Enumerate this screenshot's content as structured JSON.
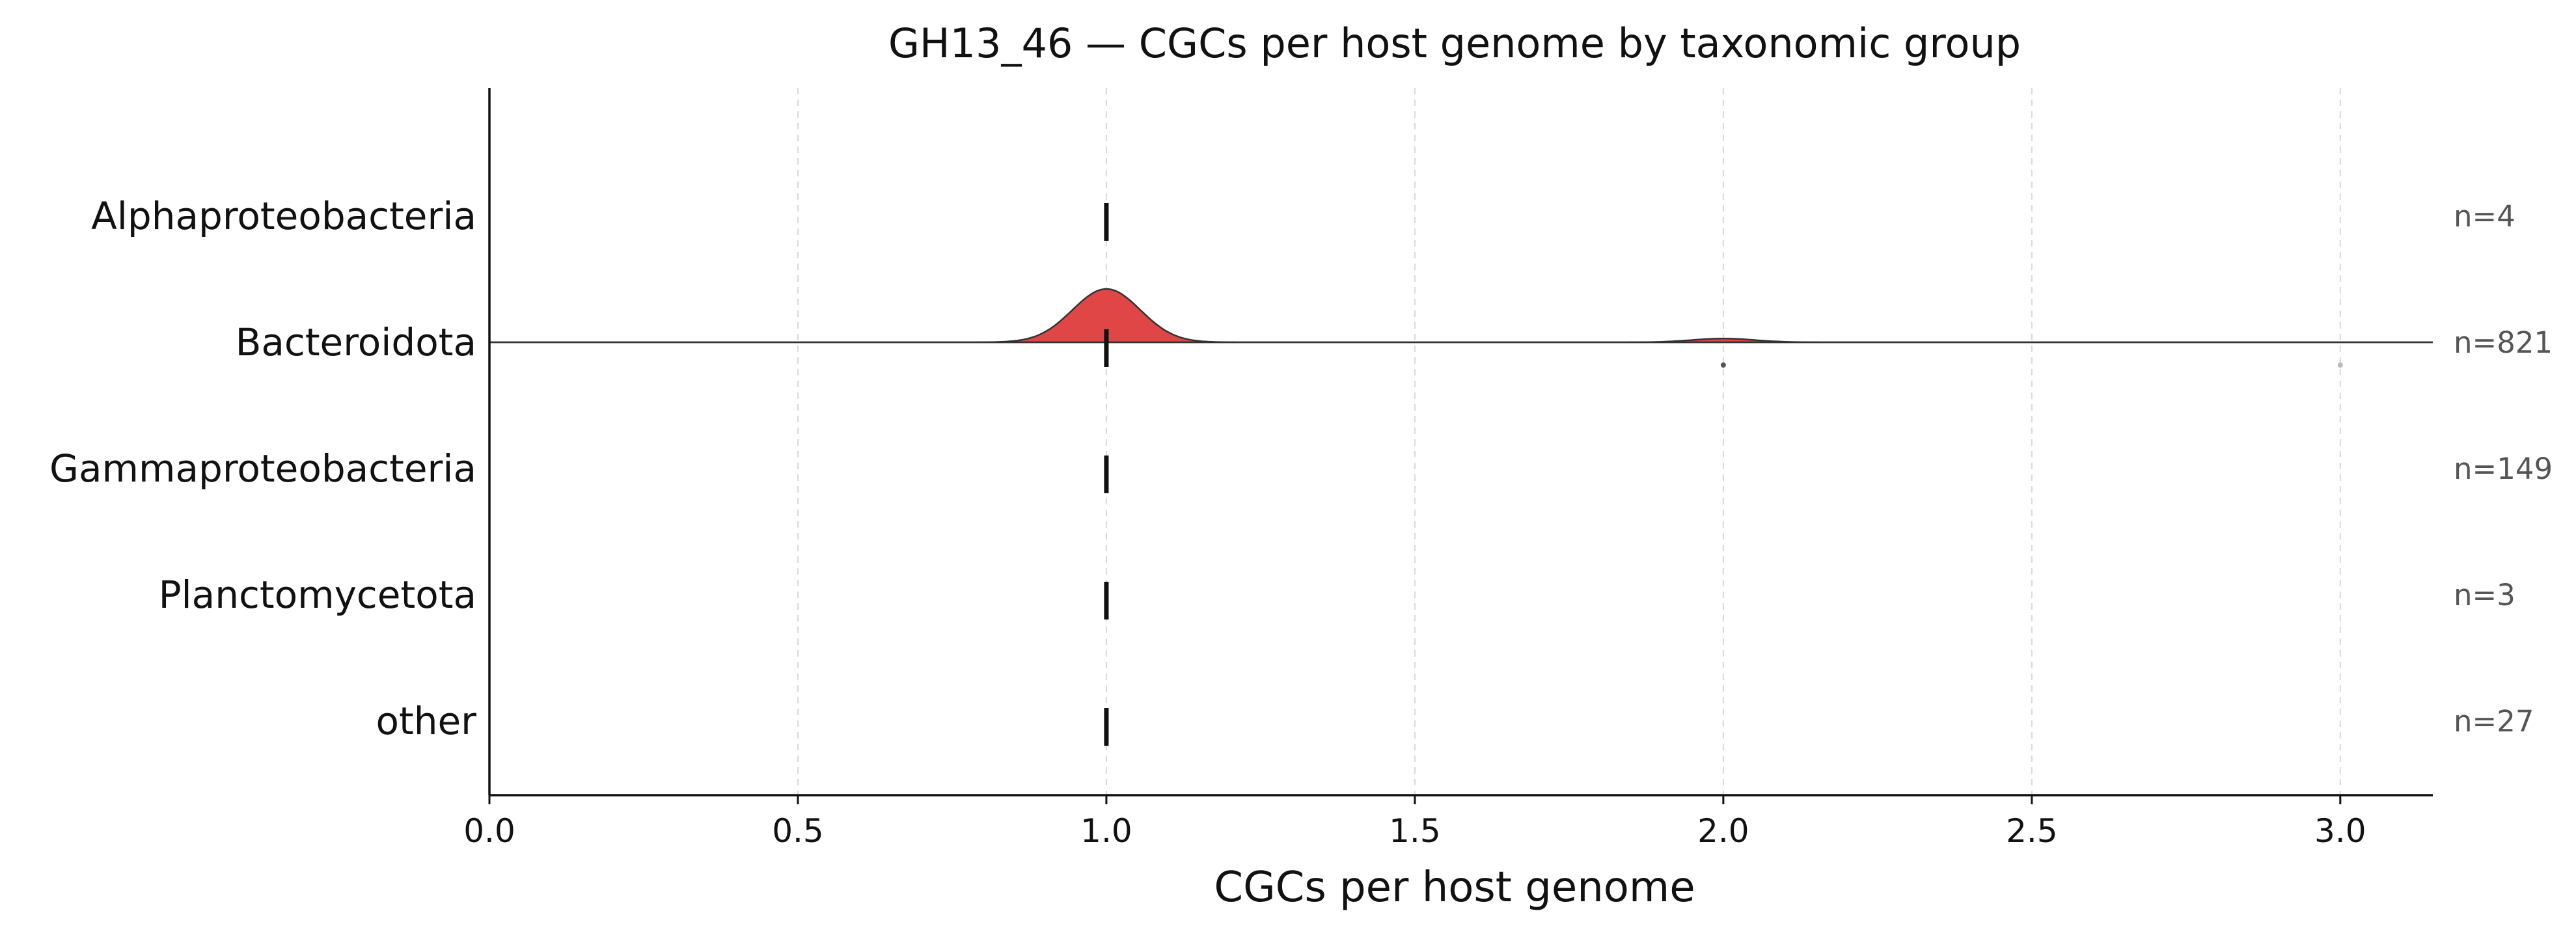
{
  "chart_data": {
    "type": "ridgeline",
    "title": "GH13_46 — CGCs per host genome by taxonomic group",
    "xlabel": "CGCs per host genome",
    "ylabel": "",
    "xlim": [
      0.0,
      3.15
    ],
    "xticks": [
      "0.0",
      "0.5",
      "1.0",
      "1.5",
      "2.0",
      "2.5",
      "3.0"
    ],
    "grid": "vertical dashed",
    "fill_color": "#e04646",
    "categories": [
      "Alphaproteobacteria",
      "Bacteroidota",
      "Gammaproteobacteria",
      "Planctomycetota",
      "other"
    ],
    "series": [
      {
        "name": "Alphaproteobacteria",
        "n_label": "n=4",
        "median": 1.0,
        "density": [],
        "outliers": []
      },
      {
        "name": "Bacteroidota",
        "n_label": "n=821",
        "median": 1.0,
        "density": [
          {
            "center": 1.0,
            "sd": 0.055,
            "peak": 1.0
          },
          {
            "center": 2.0,
            "sd": 0.05,
            "peak": 0.07
          }
        ],
        "outliers": [
          2.0,
          3.0
        ]
      },
      {
        "name": "Gammaproteobacteria",
        "n_label": "n=149",
        "median": 1.0,
        "density": [],
        "outliers": []
      },
      {
        "name": "Planctomycetota",
        "n_label": "n=3",
        "median": 1.0,
        "density": [],
        "outliers": []
      },
      {
        "name": "other",
        "n_label": "n=27",
        "median": 1.0,
        "density": [],
        "outliers": []
      }
    ]
  }
}
